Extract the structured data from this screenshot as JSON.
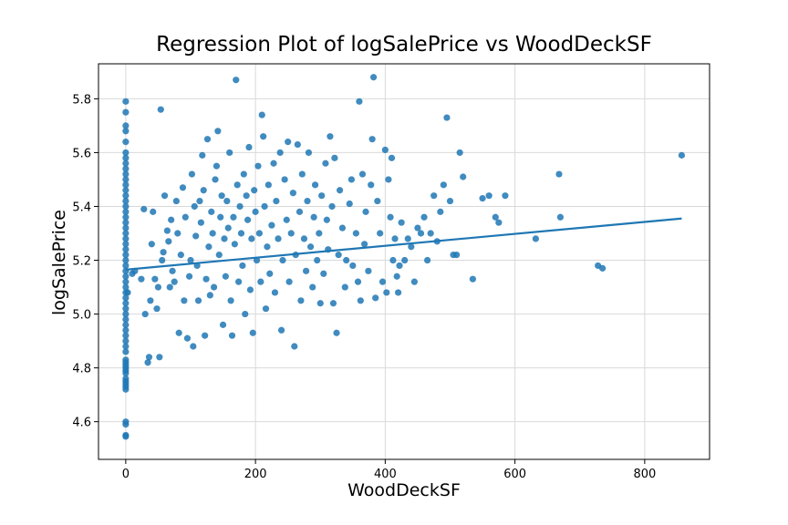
{
  "chart_data": {
    "type": "scatter",
    "title": "Regression Plot of logSalePrice vs WoodDeckSF",
    "xlabel": "WoodDeckSF",
    "ylabel": "logSalePrice",
    "xlim": [
      -42,
      900
    ],
    "ylim": [
      4.46,
      5.93
    ],
    "x_ticks": [
      0,
      200,
      400,
      600,
      800
    ],
    "y_ticks": [
      4.6,
      4.8,
      5.0,
      5.2,
      5.4,
      5.6,
      5.8
    ],
    "x_tick_labels": [
      "0",
      "200",
      "400",
      "600",
      "800"
    ],
    "y_tick_labels": [
      "4.6",
      "4.8",
      "5.0",
      "5.2",
      "5.4",
      "5.6",
      "5.8"
    ],
    "grid": true,
    "point_color": "#1f77b4",
    "line_color": "#1f77b4",
    "regression_line": {
      "x": [
        0,
        857
      ],
      "y": [
        5.165,
        5.355
      ]
    },
    "points": [
      [
        0,
        4.55
      ],
      [
        0,
        4.545
      ],
      [
        0,
        4.59
      ],
      [
        0,
        4.6
      ],
      [
        0,
        4.72
      ],
      [
        0,
        4.73
      ],
      [
        0,
        4.74
      ],
      [
        0,
        4.75
      ],
      [
        0,
        4.76
      ],
      [
        0,
        4.78
      ],
      [
        0,
        4.79
      ],
      [
        0,
        4.8
      ],
      [
        0,
        4.81
      ],
      [
        0,
        4.82
      ],
      [
        0,
        4.83
      ],
      [
        0,
        4.86
      ],
      [
        0,
        4.88
      ],
      [
        0,
        4.9
      ],
      [
        0,
        4.92
      ],
      [
        0,
        4.94
      ],
      [
        0,
        4.96
      ],
      [
        0,
        4.98
      ],
      [
        0,
        5.0
      ],
      [
        0,
        5.02
      ],
      [
        0,
        5.04
      ],
      [
        0,
        5.06
      ],
      [
        0,
        5.08
      ],
      [
        0,
        5.1
      ],
      [
        0,
        5.12
      ],
      [
        0,
        5.14
      ],
      [
        0,
        5.16
      ],
      [
        0,
        5.18
      ],
      [
        0,
        5.2
      ],
      [
        0,
        5.22
      ],
      [
        0,
        5.24
      ],
      [
        0,
        5.26
      ],
      [
        0,
        5.28
      ],
      [
        0,
        5.3
      ],
      [
        0,
        5.32
      ],
      [
        0,
        5.34
      ],
      [
        0,
        5.36
      ],
      [
        0,
        5.38
      ],
      [
        0,
        5.4
      ],
      [
        0,
        5.42
      ],
      [
        0,
        5.44
      ],
      [
        0,
        5.46
      ],
      [
        0,
        5.48
      ],
      [
        0,
        5.5
      ],
      [
        0,
        5.52
      ],
      [
        0,
        5.54
      ],
      [
        0,
        5.56
      ],
      [
        0,
        5.58
      ],
      [
        0,
        5.6
      ],
      [
        0,
        5.64
      ],
      [
        0,
        5.68
      ],
      [
        0,
        5.7
      ],
      [
        0,
        5.75
      ],
      [
        0,
        5.79
      ],
      [
        3,
        5.08
      ],
      [
        10,
        5.15
      ],
      [
        14,
        5.16
      ],
      [
        24,
        5.13
      ],
      [
        28,
        5.39
      ],
      [
        30,
        5.0
      ],
      [
        34,
        4.82
      ],
      [
        36,
        4.84
      ],
      [
        38,
        5.05
      ],
      [
        40,
        5.26
      ],
      [
        42,
        5.38
      ],
      [
        45,
        5.13
      ],
      [
        48,
        5.02
      ],
      [
        50,
        5.1
      ],
      [
        52,
        4.84
      ],
      [
        54,
        5.76
      ],
      [
        56,
        5.2
      ],
      [
        58,
        5.23
      ],
      [
        60,
        5.44
      ],
      [
        64,
        5.31
      ],
      [
        66,
        5.27
      ],
      [
        68,
        5.1
      ],
      [
        70,
        5.35
      ],
      [
        72,
        5.16
      ],
      [
        75,
        5.12
      ],
      [
        78,
        5.42
      ],
      [
        80,
        5.3
      ],
      [
        82,
        4.93
      ],
      [
        85,
        5.22
      ],
      [
        88,
        5.47
      ],
      [
        90,
        5.05
      ],
      [
        92,
        5.36
      ],
      [
        95,
        4.91
      ],
      [
        98,
        5.14
      ],
      [
        100,
        5.2
      ],
      [
        102,
        5.52
      ],
      [
        104,
        4.88
      ],
      [
        106,
        5.4
      ],
      [
        108,
        5.29
      ],
      [
        110,
        5.18
      ],
      [
        112,
        5.05
      ],
      [
        114,
        5.42
      ],
      [
        116,
        5.34
      ],
      [
        118,
        5.59
      ],
      [
        120,
        5.46
      ],
      [
        122,
        4.92
      ],
      [
        124,
        5.13
      ],
      [
        126,
        5.65
      ],
      [
        128,
        5.25
      ],
      [
        130,
        5.07
      ],
      [
        132,
        5.38
      ],
      [
        134,
        5.3
      ],
      [
        136,
        5.1
      ],
      [
        138,
        5.5
      ],
      [
        140,
        5.55
      ],
      [
        142,
        5.68
      ],
      [
        144,
        5.22
      ],
      [
        146,
        5.36
      ],
      [
        148,
        5.44
      ],
      [
        150,
        4.96
      ],
      [
        152,
        5.28
      ],
      [
        154,
        5.14
      ],
      [
        156,
        5.42
      ],
      [
        158,
        5.32
      ],
      [
        160,
        5.6
      ],
      [
        162,
        5.05
      ],
      [
        164,
        4.92
      ],
      [
        166,
        5.36
      ],
      [
        168,
        5.26
      ],
      [
        170,
        5.87
      ],
      [
        172,
        5.48
      ],
      [
        174,
        5.12
      ],
      [
        176,
        5.4
      ],
      [
        178,
        5.3
      ],
      [
        180,
        5.18
      ],
      [
        182,
        5.52
      ],
      [
        184,
        5.0
      ],
      [
        186,
        5.44
      ],
      [
        188,
        5.35
      ],
      [
        190,
        5.62
      ],
      [
        192,
        5.09
      ],
      [
        194,
        5.28
      ],
      [
        196,
        4.93
      ],
      [
        198,
        5.46
      ],
      [
        200,
        5.38
      ],
      [
        202,
        5.2
      ],
      [
        204,
        5.55
      ],
      [
        206,
        5.3
      ],
      [
        208,
        5.12
      ],
      [
        210,
        5.74
      ],
      [
        212,
        5.66
      ],
      [
        214,
        5.4
      ],
      [
        216,
        5.02
      ],
      [
        218,
        5.25
      ],
      [
        220,
        5.48
      ],
      [
        222,
        5.15
      ],
      [
        225,
        5.33
      ],
      [
        228,
        5.56
      ],
      [
        230,
        5.08
      ],
      [
        232,
        5.42
      ],
      [
        235,
        5.28
      ],
      [
        238,
        5.6
      ],
      [
        240,
        4.94
      ],
      [
        242,
        5.2
      ],
      [
        245,
        5.5
      ],
      [
        248,
        5.35
      ],
      [
        250,
        5.64
      ],
      [
        252,
        5.12
      ],
      [
        255,
        5.3
      ],
      [
        258,
        5.45
      ],
      [
        260,
        4.88
      ],
      [
        262,
        5.22
      ],
      [
        265,
        5.63
      ],
      [
        268,
        5.38
      ],
      [
        270,
        5.05
      ],
      [
        272,
        5.52
      ],
      [
        275,
        5.28
      ],
      [
        278,
        5.16
      ],
      [
        280,
        5.42
      ],
      [
        282,
        5.6
      ],
      [
        285,
        5.25
      ],
      [
        288,
        5.1
      ],
      [
        290,
        5.36
      ],
      [
        292,
        5.48
      ],
      [
        295,
        5.2
      ],
      [
        298,
        5.3
      ],
      [
        300,
        5.04
      ],
      [
        302,
        5.44
      ],
      [
        305,
        5.15
      ],
      [
        308,
        5.56
      ],
      [
        310,
        5.35
      ],
      [
        312,
        5.24
      ],
      [
        315,
        5.66
      ],
      [
        318,
        5.4
      ],
      [
        320,
        5.04
      ],
      [
        322,
        5.58
      ],
      [
        325,
        4.93
      ],
      [
        328,
        5.22
      ],
      [
        330,
        5.46
      ],
      [
        334,
        5.32
      ],
      [
        338,
        5.1
      ],
      [
        340,
        5.2
      ],
      [
        345,
        5.41
      ],
      [
        348,
        5.5
      ],
      [
        350,
        5.18
      ],
      [
        355,
        5.3
      ],
      [
        358,
        5.12
      ],
      [
        360,
        5.79
      ],
      [
        362,
        5.05
      ],
      [
        365,
        5.52
      ],
      [
        368,
        5.26
      ],
      [
        370,
        5.38
      ],
      [
        374,
        5.16
      ],
      [
        378,
        5.48
      ],
      [
        380,
        5.65
      ],
      [
        382,
        5.88
      ],
      [
        385,
        5.06
      ],
      [
        388,
        5.42
      ],
      [
        392,
        5.3
      ],
      [
        396,
        5.12
      ],
      [
        400,
        5.61
      ],
      [
        402,
        5.08
      ],
      [
        405,
        5.5
      ],
      [
        408,
        5.36
      ],
      [
        410,
        5.58
      ],
      [
        412,
        5.2
      ],
      [
        415,
        5.28
      ],
      [
        418,
        5.14
      ],
      [
        420,
        5.08
      ],
      [
        422,
        5.18
      ],
      [
        425,
        5.34
      ],
      [
        430,
        5.2
      ],
      [
        435,
        5.28
      ],
      [
        440,
        5.25
      ],
      [
        445,
        5.12
      ],
      [
        450,
        5.32
      ],
      [
        455,
        5.3
      ],
      [
        460,
        5.36
      ],
      [
        465,
        5.2
      ],
      [
        470,
        5.3
      ],
      [
        475,
        5.44
      ],
      [
        480,
        5.27
      ],
      [
        485,
        5.38
      ],
      [
        490,
        5.48
      ],
      [
        495,
        5.73
      ],
      [
        500,
        5.42
      ],
      [
        505,
        5.22
      ],
      [
        510,
        5.22
      ],
      [
        515,
        5.6
      ],
      [
        520,
        5.51
      ],
      [
        535,
        5.13
      ],
      [
        550,
        5.43
      ],
      [
        560,
        5.44
      ],
      [
        570,
        5.36
      ],
      [
        575,
        5.34
      ],
      [
        585,
        5.44
      ],
      [
        632,
        5.28
      ],
      [
        668,
        5.52
      ],
      [
        670,
        5.36
      ],
      [
        728,
        5.18
      ],
      [
        735,
        5.17
      ],
      [
        857,
        5.59
      ]
    ]
  }
}
